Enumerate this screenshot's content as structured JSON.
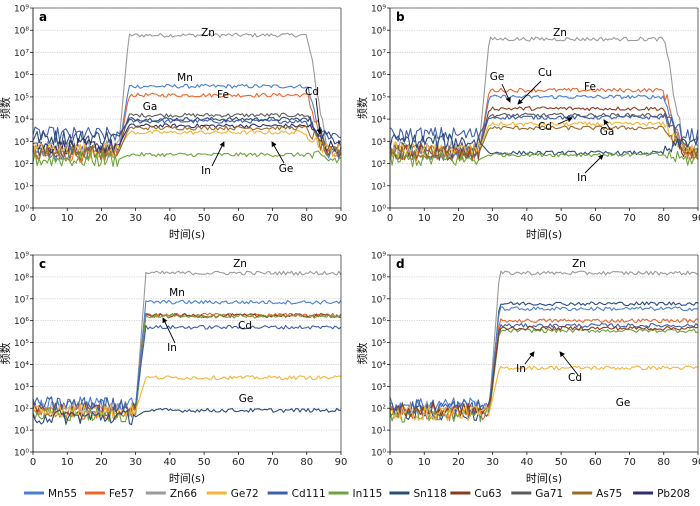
{
  "figure": {
    "legend": [
      {
        "name": "Mn55",
        "color": "#4a7fd0"
      },
      {
        "name": "Fe57",
        "color": "#e8682e"
      },
      {
        "name": "Zn66",
        "color": "#9a9a9a"
      },
      {
        "name": "Ge72",
        "color": "#f4b43a"
      },
      {
        "name": "Cd111",
        "color": "#3f5fa8"
      },
      {
        "name": "In115",
        "color": "#6ea43a"
      },
      {
        "name": "Sn118",
        "color": "#2c4b7c"
      },
      {
        "name": "Cu63",
        "color": "#8b3a1e"
      },
      {
        "name": "Ga71",
        "color": "#5a5a5a"
      },
      {
        "name": "As75",
        "color": "#9a6a28"
      },
      {
        "name": "Pb208",
        "color": "#2e2e6e"
      }
    ]
  },
  "chart_data": [
    {
      "panel": "a",
      "type": "line",
      "xlabel": "时间(s)",
      "ylabel": "频数",
      "xlim": [
        0,
        90
      ],
      "ylim": [
        1,
        1000000000
      ],
      "yscale": "log",
      "xticks": [
        "0",
        "10",
        "20",
        "30",
        "40",
        "50",
        "60",
        "70",
        "80",
        "90"
      ],
      "yticks": [
        "10⁰",
        "10¹",
        "10²",
        "10³",
        "10⁴",
        "10⁵",
        "10⁶",
        "10⁷",
        "10⁸",
        "10⁹"
      ],
      "grid": "horizontal",
      "signal_window": [
        25,
        80
      ],
      "annotations": [
        {
          "label": "Zn"
        },
        {
          "label": "Mn"
        },
        {
          "label": "Fe"
        },
        {
          "label": "Ga"
        },
        {
          "label": "Cd"
        },
        {
          "label": "In"
        },
        {
          "label": "Ge"
        }
      ],
      "series": [
        {
          "name": "Zn66",
          "background": 500,
          "signal": 60000000
        },
        {
          "name": "Mn55",
          "background": 300,
          "signal": 300000
        },
        {
          "name": "Fe57",
          "background": 250,
          "signal": 120000
        },
        {
          "name": "Ga71",
          "background": 400,
          "signal": 15000
        },
        {
          "name": "Cd111",
          "background": 2000,
          "signal": 8000
        },
        {
          "name": "Sn118",
          "background": 1500,
          "signal": 10000
        },
        {
          "name": "Pb208",
          "background": 600,
          "signal": 5000
        },
        {
          "name": "Ge72",
          "background": 400,
          "signal": 2500
        },
        {
          "name": "As75",
          "background": 300,
          "signal": 4000
        },
        {
          "name": "In115",
          "background": 150,
          "signal": 250
        }
      ]
    },
    {
      "panel": "b",
      "type": "line",
      "xlabel": "时间(s)",
      "ylabel": "频数",
      "xlim": [
        0,
        90
      ],
      "ylim": [
        1,
        1000000000
      ],
      "yscale": "log",
      "xticks": [
        "0",
        "10",
        "20",
        "30",
        "40",
        "50",
        "60",
        "70",
        "80",
        "90"
      ],
      "yticks": [
        "10⁰",
        "10¹",
        "10²",
        "10³",
        "10⁴",
        "10⁵",
        "10⁶",
        "10⁷",
        "10⁸",
        "10⁹"
      ],
      "grid": "horizontal",
      "signal_window": [
        26,
        80
      ],
      "annotations": [
        {
          "label": "Zn"
        },
        {
          "label": "Ge"
        },
        {
          "label": "Cu"
        },
        {
          "label": "Fe"
        },
        {
          "label": "Cd"
        },
        {
          "label": "Ga"
        },
        {
          "label": "In"
        }
      ],
      "series": [
        {
          "name": "Zn66",
          "background": 500,
          "signal": 40000000
        },
        {
          "name": "Fe57",
          "background": 300,
          "signal": 200000
        },
        {
          "name": "Mn55",
          "background": 300,
          "signal": 100000
        },
        {
          "name": "Cu63",
          "background": 300,
          "signal": 30000
        },
        {
          "name": "Ga71",
          "background": 400,
          "signal": 15000
        },
        {
          "name": "Cd111",
          "background": 2000,
          "signal": 12000
        },
        {
          "name": "Ge72",
          "background": 400,
          "signal": 6000
        },
        {
          "name": "As75",
          "background": 300,
          "signal": 4000
        },
        {
          "name": "Sn118",
          "background": 1000,
          "signal": 300
        },
        {
          "name": "In115",
          "background": 150,
          "signal": 250
        }
      ]
    },
    {
      "panel": "c",
      "type": "line",
      "xlabel": "时间(s)",
      "ylabel": "频数",
      "xlim": [
        0,
        90
      ],
      "ylim": [
        1,
        1000000000
      ],
      "yscale": "log",
      "xticks": [
        "0",
        "10",
        "20",
        "30",
        "40",
        "50",
        "60",
        "70",
        "80",
        "90"
      ],
      "yticks": [
        "10⁰",
        "10¹",
        "10²",
        "10³",
        "10⁴",
        "10⁵",
        "10⁶",
        "10⁷",
        "10⁸",
        "10⁹"
      ],
      "grid": "horizontal",
      "signal_window": [
        30,
        90
      ],
      "annotations": [
        {
          "label": "Zn"
        },
        {
          "label": "Mn"
        },
        {
          "label": "In"
        },
        {
          "label": "Cd"
        },
        {
          "label": "Ge"
        }
      ],
      "series": [
        {
          "name": "Zn66",
          "background": 100,
          "signal": 150000000
        },
        {
          "name": "Mn55",
          "background": 150,
          "signal": 7000000
        },
        {
          "name": "Fe57",
          "background": 60,
          "signal": 1800000
        },
        {
          "name": "Cu63",
          "background": 80,
          "signal": 1700000
        },
        {
          "name": "In115",
          "background": 50,
          "signal": 1600000
        },
        {
          "name": "Cd111",
          "background": 150,
          "signal": 500000
        },
        {
          "name": "Ge72",
          "background": 80,
          "signal": 2500
        },
        {
          "name": "Sn118",
          "background": 40,
          "signal": 80
        }
      ]
    },
    {
      "panel": "d",
      "type": "line",
      "xlabel": "时间(s)",
      "ylabel": "频数",
      "xlim": [
        0,
        90
      ],
      "ylim": [
        1,
        1000000000
      ],
      "yscale": "log",
      "xticks": [
        "0",
        "10",
        "20",
        "30",
        "40",
        "50",
        "60",
        "70",
        "80",
        "90"
      ],
      "yticks": [
        "10⁰",
        "10¹",
        "10²",
        "10³",
        "10⁴",
        "10⁵",
        "10⁶",
        "10⁷",
        "10⁸",
        "10⁹"
      ],
      "grid": "horizontal",
      "signal_window": [
        29,
        90
      ],
      "annotations": [
        {
          "label": "Zn"
        },
        {
          "label": "In"
        },
        {
          "label": "Cd"
        },
        {
          "label": "Ge"
        }
      ],
      "series": [
        {
          "name": "Zn66",
          "background": 100,
          "signal": 150000000
        },
        {
          "name": "Sn118",
          "background": 60,
          "signal": 6000000
        },
        {
          "name": "Mn55",
          "background": 150,
          "signal": 3500000
        },
        {
          "name": "Fe57",
          "background": 60,
          "signal": 1000000
        },
        {
          "name": "Cd111",
          "background": 120,
          "signal": 600000
        },
        {
          "name": "In115",
          "background": 50,
          "signal": 350000
        },
        {
          "name": "Cu63",
          "background": 80,
          "signal": 450000
        },
        {
          "name": "Ge72",
          "background": 60,
          "signal": 7000
        }
      ]
    }
  ]
}
